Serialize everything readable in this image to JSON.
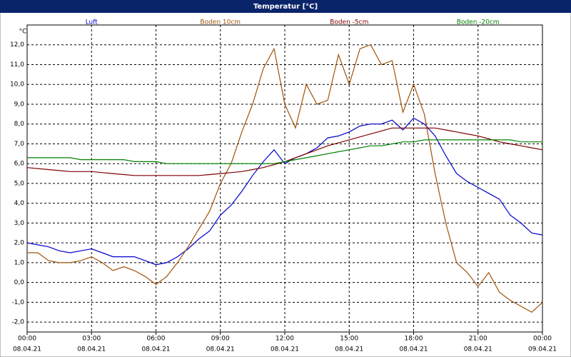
{
  "chart_data": {
    "type": "line",
    "title": "Temperatur [°C]",
    "y_unit": "°C",
    "x": [
      0,
      0.5,
      1,
      1.5,
      2,
      2.5,
      3,
      3.5,
      4,
      4.5,
      5,
      5.5,
      6,
      6.5,
      7,
      7.5,
      8,
      8.5,
      9,
      9.5,
      10,
      10.5,
      11,
      11.5,
      12,
      12.5,
      13,
      13.5,
      14,
      14.5,
      15,
      15.5,
      16,
      16.5,
      17,
      17.5,
      18,
      18.5,
      19,
      19.5,
      20,
      20.5,
      21,
      21.5,
      22,
      22.5,
      23,
      23.5,
      24
    ],
    "series": [
      {
        "name": "Luft",
        "color": "#0000cc",
        "values": [
          2.0,
          1.9,
          1.8,
          1.6,
          1.5,
          1.6,
          1.7,
          1.5,
          1.3,
          1.3,
          1.3,
          1.1,
          0.9,
          1.0,
          1.3,
          1.7,
          2.2,
          2.6,
          3.4,
          3.9,
          4.6,
          5.4,
          6.1,
          6.7,
          6.0,
          6.3,
          6.5,
          6.8,
          7.3,
          7.4,
          7.6,
          7.9,
          8.0,
          8.0,
          8.2,
          7.7,
          8.3,
          8.0,
          7.4,
          6.4,
          5.5,
          5.1,
          4.8,
          4.5,
          4.2,
          3.4,
          3.0,
          2.5,
          2.4
        ]
      },
      {
        "name": "Boden 10cm",
        "color": "#a0520a",
        "values": [
          1.5,
          1.5,
          1.1,
          1.0,
          1.0,
          1.1,
          1.3,
          1.0,
          0.6,
          0.8,
          0.6,
          0.3,
          -0.1,
          0.3,
          1.0,
          1.8,
          2.7,
          3.6,
          5.0,
          6.0,
          7.6,
          9.0,
          10.8,
          11.8,
          9.0,
          7.8,
          10.0,
          9.0,
          9.2,
          11.5,
          10.0,
          11.8,
          12.0,
          11.0,
          11.2,
          8.6,
          10.0,
          8.5,
          5.5,
          3.0,
          1.0,
          0.5,
          -0.2,
          0.5,
          -0.5,
          -0.9,
          -1.2,
          -1.5,
          -1.0
        ]
      },
      {
        "name": "Boden -5cm",
        "color": "#800000",
        "values": [
          5.8,
          5.75,
          5.7,
          5.65,
          5.6,
          5.6,
          5.6,
          5.55,
          5.5,
          5.45,
          5.4,
          5.4,
          5.4,
          5.4,
          5.4,
          5.4,
          5.4,
          5.45,
          5.5,
          5.55,
          5.6,
          5.7,
          5.8,
          5.95,
          6.1,
          6.3,
          6.5,
          6.7,
          6.9,
          7.05,
          7.2,
          7.35,
          7.5,
          7.65,
          7.8,
          7.8,
          7.8,
          7.8,
          7.8,
          7.7,
          7.6,
          7.5,
          7.4,
          7.25,
          7.1,
          7.0,
          6.9,
          6.8,
          6.7
        ]
      },
      {
        "name": "Boden -20cm",
        "color": "#008000",
        "values": [
          6.3,
          6.3,
          6.3,
          6.3,
          6.3,
          6.2,
          6.2,
          6.2,
          6.2,
          6.2,
          6.1,
          6.1,
          6.1,
          6.0,
          6.0,
          6.0,
          6.0,
          6.0,
          6.0,
          6.0,
          6.0,
          6.0,
          6.0,
          6.0,
          6.1,
          6.2,
          6.3,
          6.4,
          6.5,
          6.6,
          6.7,
          6.8,
          6.9,
          6.9,
          7.0,
          7.1,
          7.1,
          7.2,
          7.2,
          7.2,
          7.2,
          7.2,
          7.2,
          7.2,
          7.2,
          7.2,
          7.1,
          7.1,
          7.1
        ]
      }
    ],
    "xlim": [
      0,
      24
    ],
    "xticks": [
      {
        "value": 0,
        "label": "00:00"
      },
      {
        "value": 3,
        "label": "03:00"
      },
      {
        "value": 6,
        "label": "06:00"
      },
      {
        "value": 9,
        "label": "09:00"
      },
      {
        "value": 12,
        "label": "12:00"
      },
      {
        "value": 15,
        "label": "15:00"
      },
      {
        "value": 18,
        "label": "18:00"
      },
      {
        "value": 21,
        "label": "21:00"
      },
      {
        "value": 24,
        "label": "00:00"
      }
    ],
    "xtick_dates": [
      "08.04.21",
      "08.04.21",
      "08.04.21",
      "08.04.21",
      "08.04.21",
      "08.04.21",
      "08.04.21",
      "08.04.21",
      "09.04.21"
    ],
    "ylim": [
      -2.5,
      13
    ],
    "yticks": [
      {
        "value": -2,
        "label": "-2,0"
      },
      {
        "value": -1,
        "label": "-1,0"
      },
      {
        "value": 0,
        "label": "0,0"
      },
      {
        "value": 1,
        "label": "1,0"
      },
      {
        "value": 2,
        "label": "2,0"
      },
      {
        "value": 3,
        "label": "3,0"
      },
      {
        "value": 4,
        "label": "4,0"
      },
      {
        "value": 5,
        "label": "5,0"
      },
      {
        "value": 6,
        "label": "6,0"
      },
      {
        "value": 7,
        "label": "7,0"
      },
      {
        "value": 8,
        "label": "8,0"
      },
      {
        "value": 9,
        "label": "9,0"
      },
      {
        "value": 10,
        "label": "10,0"
      },
      {
        "value": 11,
        "label": "11,0"
      },
      {
        "value": 12,
        "label": "12,0"
      }
    ],
    "grid": true
  }
}
